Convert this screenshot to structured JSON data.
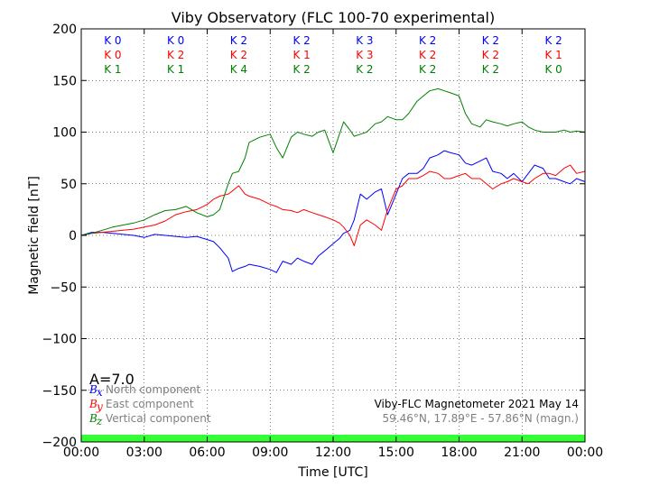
{
  "chart_data": {
    "type": "line",
    "title": "Viby Observatory (FLC 100-70 experimental)",
    "xlabel": "Time [UTC]",
    "ylabel": "Magnetic field [nT]",
    "xlim": [
      0,
      24
    ],
    "ylim": [
      -200,
      200
    ],
    "grid": true,
    "x_ticks": [
      "00:00",
      "03:00",
      "06:00",
      "09:00",
      "12:00",
      "15:00",
      "18:00",
      "21:00",
      "00:00"
    ],
    "y_ticks": [
      "200",
      "150",
      "100",
      "50",
      "0",
      "−50",
      "−100",
      "−150",
      "−200"
    ],
    "k_indices": {
      "rows": [
        {
          "color": "#0000ff",
          "values": [
            "K 0",
            "K 0",
            "K 2",
            "K 2",
            "K 3",
            "K 2",
            "K 2",
            "K 2"
          ]
        },
        {
          "color": "#ff0000",
          "values": [
            "K 0",
            "K 2",
            "K 2",
            "K 1",
            "K 3",
            "K 2",
            "K 2",
            "K 1"
          ]
        },
        {
          "color": "#008000",
          "values": [
            "K 1",
            "K 1",
            "K 4",
            "K 2",
            "K 2",
            "K 2",
            "K 2",
            "K 0"
          ]
        }
      ]
    },
    "a_index": "A=7.0",
    "legend": {
      "placement": "lower-left",
      "entries": [
        {
          "symbol": "B",
          "sub": "x",
          "label": "North component",
          "color": "#0000ff"
        },
        {
          "symbol": "B",
          "sub": "y",
          "label": "East component",
          "color": "#ff0000"
        },
        {
          "symbol": "B",
          "sub": "z",
          "label": "Vertical component",
          "color": "#008000"
        }
      ]
    },
    "info_text": "Viby-FLC Magnetometer 2021 May 14",
    "location_text": "59.46°N, 17.89°E - 57.86°N (magn.)",
    "status_bar_color": "#33ff33",
    "series": [
      {
        "name": "North component",
        "color": "#0000ff",
        "x": [
          0,
          0.5,
          1,
          1.5,
          2,
          2.5,
          3,
          3.5,
          4,
          4.5,
          5,
          5.5,
          6,
          6.3,
          6.6,
          7,
          7.2,
          7.5,
          7.8,
          8,
          8.5,
          9,
          9.3,
          9.6,
          10,
          10.3,
          10.6,
          11,
          11.3,
          11.6,
          12,
          12.3,
          12.5,
          12.8,
          13,
          13.3,
          13.6,
          14,
          14.3,
          14.6,
          15,
          15.3,
          15.6,
          16,
          16.3,
          16.6,
          17,
          17.3,
          17.6,
          18,
          18.3,
          18.6,
          19,
          19.3,
          19.6,
          20,
          20.3,
          20.6,
          21,
          21.3,
          21.6,
          22,
          22.3,
          22.6,
          23,
          23.3,
          23.6,
          24
        ],
        "y": [
          0,
          3,
          3,
          2,
          1,
          0,
          -2,
          1,
          0,
          -1,
          -2,
          -1,
          -4,
          -6,
          -12,
          -22,
          -35,
          -32,
          -30,
          -28,
          -30,
          -33,
          -36,
          -25,
          -28,
          -22,
          -25,
          -28,
          -20,
          -15,
          -8,
          -3,
          2,
          5,
          15,
          40,
          35,
          42,
          45,
          20,
          40,
          55,
          60,
          60,
          65,
          75,
          78,
          82,
          80,
          78,
          70,
          68,
          72,
          75,
          62,
          60,
          55,
          60,
          52,
          60,
          68,
          65,
          55,
          55,
          52,
          50,
          55,
          52
        ]
      },
      {
        "name": "East component",
        "color": "#ff0000",
        "x": [
          0,
          0.5,
          1,
          1.5,
          2,
          2.5,
          3,
          3.5,
          4,
          4.5,
          5,
          5.5,
          6,
          6.3,
          6.6,
          7,
          7.2,
          7.5,
          7.8,
          8,
          8.5,
          9,
          9.3,
          9.6,
          10,
          10.3,
          10.6,
          11,
          11.3,
          11.6,
          12,
          12.3,
          12.5,
          12.8,
          13,
          13.3,
          13.6,
          14,
          14.3,
          14.6,
          15,
          15.3,
          15.6,
          16,
          16.3,
          16.6,
          17,
          17.3,
          17.6,
          18,
          18.3,
          18.6,
          19,
          19.3,
          19.6,
          20,
          20.3,
          20.6,
          21,
          21.3,
          21.6,
          22,
          22.3,
          22.6,
          23,
          23.3,
          23.6,
          24
        ],
        "y": [
          0,
          2,
          3,
          4,
          5,
          6,
          8,
          10,
          14,
          20,
          23,
          25,
          30,
          35,
          38,
          40,
          43,
          48,
          40,
          38,
          35,
          30,
          28,
          25,
          24,
          22,
          25,
          22,
          20,
          18,
          15,
          12,
          8,
          0,
          -10,
          10,
          15,
          10,
          5,
          25,
          45,
          48,
          55,
          55,
          58,
          62,
          60,
          55,
          55,
          58,
          60,
          55,
          55,
          50,
          45,
          50,
          52,
          55,
          52,
          50,
          55,
          60,
          60,
          58,
          65,
          68,
          60,
          62
        ]
      },
      {
        "name": "Vertical component",
        "color": "#008000",
        "x": [
          0,
          0.5,
          1,
          1.5,
          2,
          2.5,
          3,
          3.5,
          4,
          4.5,
          5,
          5.5,
          6,
          6.3,
          6.6,
          7,
          7.2,
          7.5,
          7.8,
          8,
          8.5,
          9,
          9.3,
          9.6,
          10,
          10.3,
          10.6,
          11,
          11.3,
          11.6,
          12,
          12.3,
          12.5,
          12.8,
          13,
          13.3,
          13.6,
          14,
          14.3,
          14.6,
          15,
          15.3,
          15.6,
          16,
          16.3,
          16.6,
          17,
          17.3,
          17.6,
          18,
          18.3,
          18.6,
          19,
          19.3,
          19.6,
          20,
          20.3,
          20.6,
          21,
          21.3,
          21.6,
          22,
          22.3,
          22.6,
          23,
          23.3,
          23.6,
          24
        ],
        "y": [
          0,
          2,
          5,
          8,
          10,
          12,
          15,
          20,
          24,
          25,
          28,
          22,
          18,
          20,
          25,
          50,
          60,
          62,
          75,
          90,
          95,
          98,
          85,
          75,
          95,
          100,
          98,
          96,
          100,
          102,
          80,
          98,
          110,
          102,
          96,
          98,
          100,
          108,
          110,
          115,
          112,
          112,
          118,
          130,
          135,
          140,
          142,
          140,
          138,
          135,
          118,
          108,
          105,
          112,
          110,
          108,
          106,
          108,
          110,
          105,
          102,
          100,
          100,
          100,
          102,
          100,
          101,
          100
        ]
      }
    ]
  }
}
